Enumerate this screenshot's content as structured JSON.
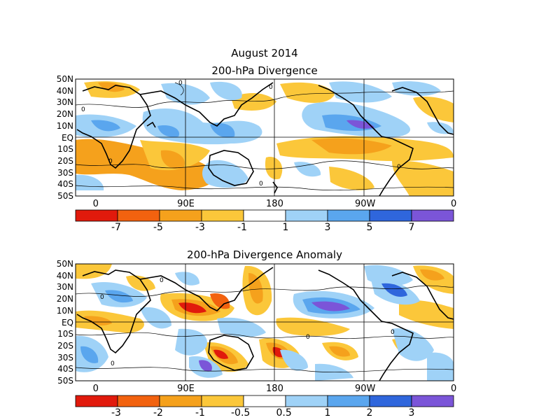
{
  "main_title": "August 2014",
  "panels": [
    {
      "id": "div",
      "title": "200-hPa Divergence",
      "lat_labels": [
        "50N",
        "40N",
        "30N",
        "20N",
        "10N",
        "EQ",
        "10S",
        "20S",
        "30S",
        "40S",
        "50S"
      ],
      "lon_labels": [
        "0",
        "90E",
        "180",
        "90W",
        "0"
      ],
      "colorbar_labels": [
        "-7",
        "-5",
        "-3",
        "-1",
        "1",
        "3",
        "5",
        "7"
      ],
      "colorbar_colors": [
        "#e11a0c",
        "#f2620f",
        "#f5a11c",
        "#fbc73a",
        "#ffffff",
        "#9fd2f7",
        "#5aa6ee",
        "#2f66dc",
        "#7b55d8"
      ]
    },
    {
      "id": "anom",
      "title": "200-hPa Divergence Anomaly",
      "lat_labels": [
        "50N",
        "40N",
        "30N",
        "20N",
        "10N",
        "EQ",
        "10S",
        "20S",
        "30S",
        "40S",
        "50S"
      ],
      "lon_labels": [
        "0",
        "90E",
        "180",
        "90W",
        "0"
      ],
      "colorbar_labels": [
        "-3",
        "-2",
        "-1",
        "-0.5",
        "0.5",
        "1",
        "2",
        "3"
      ],
      "colorbar_colors": [
        "#e11a0c",
        "#f2620f",
        "#f5a11c",
        "#fbc73a",
        "#ffffff",
        "#9fd2f7",
        "#5aa6ee",
        "#2f66dc",
        "#7b55d8"
      ]
    }
  ],
  "contour_label": "0",
  "chart_data": [
    {
      "type": "heatmap",
      "title": "200-hPa Divergence",
      "xlabel": "",
      "ylabel": "",
      "xlim": [
        0,
        360
      ],
      "ylim": [
        -50,
        50
      ],
      "x_ticks": [
        "0",
        "90E",
        "180",
        "90W",
        "0"
      ],
      "y_ticks": [
        "50N",
        "40N",
        "30N",
        "20N",
        "10N",
        "EQ",
        "10S",
        "20S",
        "30S",
        "40S",
        "50S"
      ],
      "levels": [
        -7,
        -5,
        -3,
        -1,
        1,
        3,
        5,
        7
      ],
      "features": [
        {
          "lon": 25,
          "lat": 5,
          "value": 4
        },
        {
          "lon": 55,
          "lat": 40,
          "value": 3
        },
        {
          "lon": 110,
          "lat": 20,
          "value": 5
        },
        {
          "lon": 150,
          "lat": 25,
          "value": 4
        },
        {
          "lon": 265,
          "lat": 12,
          "value": 8
        },
        {
          "lon": 120,
          "lat": -25,
          "value": -4
        },
        {
          "lon": 230,
          "lat": -12,
          "value": -4
        },
        {
          "lon": 20,
          "lat": -15,
          "value": -3
        },
        {
          "lon": 210,
          "lat": 20,
          "value": -3
        }
      ]
    },
    {
      "type": "heatmap",
      "title": "200-hPa Divergence Anomaly",
      "xlabel": "",
      "ylabel": "",
      "xlim": [
        0,
        360
      ],
      "ylim": [
        -50,
        50
      ],
      "x_ticks": [
        "0",
        "90E",
        "180",
        "90W",
        "0"
      ],
      "y_ticks": [
        "50N",
        "40N",
        "30N",
        "20N",
        "10N",
        "EQ",
        "10S",
        "20S",
        "30S",
        "40S",
        "50S"
      ],
      "levels": [
        -3,
        -2,
        -1,
        -0.5,
        0.5,
        1,
        2,
        3
      ],
      "features": [
        {
          "lon": 90,
          "lat": 12,
          "value": -3
        },
        {
          "lon": 130,
          "lat": -30,
          "value": -2.5
        },
        {
          "lon": 185,
          "lat": -30,
          "value": -2.5
        },
        {
          "lon": 228,
          "lat": 10,
          "value": 3
        },
        {
          "lon": 270,
          "lat": 30,
          "value": 2
        },
        {
          "lon": 120,
          "lat": -38,
          "value": 3
        },
        {
          "lon": 60,
          "lat": 5,
          "value": -2
        },
        {
          "lon": 20,
          "lat": 5,
          "value": 1
        },
        {
          "lon": 330,
          "lat": 20,
          "value": 1
        }
      ]
    }
  ]
}
